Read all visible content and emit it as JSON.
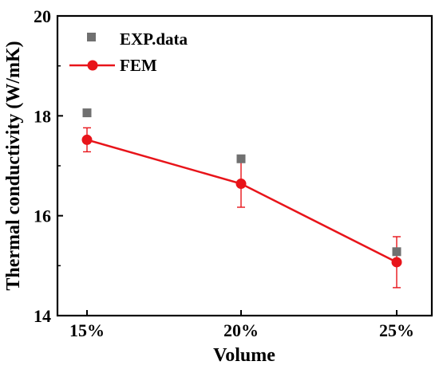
{
  "chart_data": {
    "type": "scatter",
    "xlabel": "Volume",
    "ylabel": "Thermal conductivity (W/mK)",
    "categories": [
      "15%",
      "20%",
      "25%"
    ],
    "ylim": [
      14,
      20
    ],
    "yticks": [
      14,
      16,
      18,
      20
    ],
    "grid": false,
    "legend_position": "top-left",
    "series": [
      {
        "name": "EXP.data",
        "kind": "scatter-square",
        "color": "#707070",
        "values": [
          18.06,
          17.14,
          15.28
        ]
      },
      {
        "name": "FEM",
        "kind": "line-marker",
        "color": "#e8141a",
        "values": [
          17.52,
          16.64,
          15.07
        ],
        "error": [
          0.24,
          0.47,
          0.51
        ]
      }
    ]
  }
}
